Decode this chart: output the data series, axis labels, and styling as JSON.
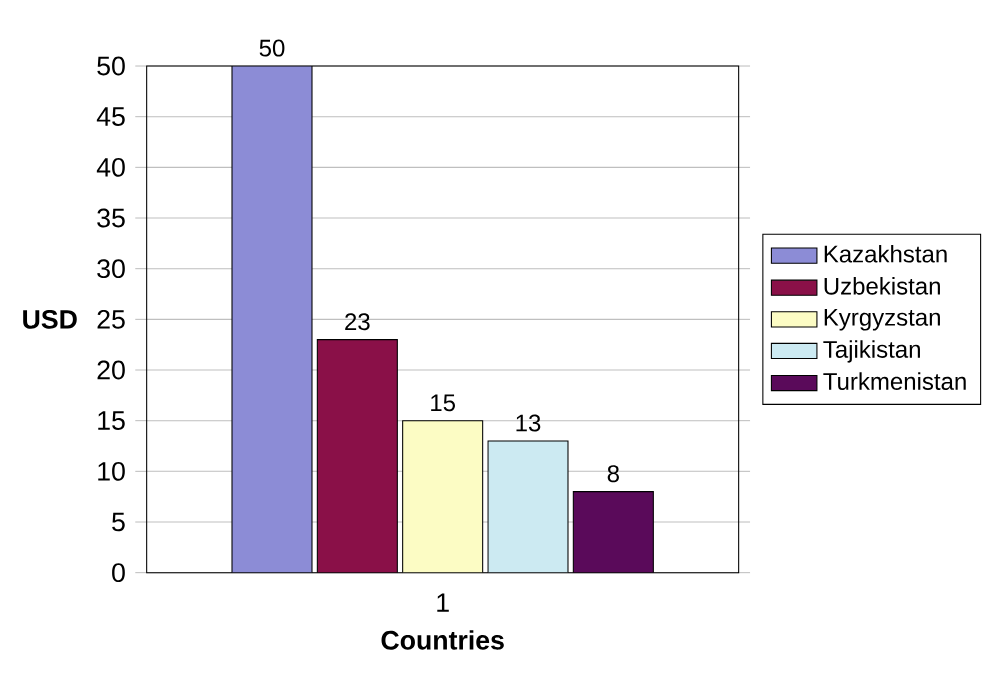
{
  "chart_data": {
    "type": "bar",
    "xlabel": "Countries",
    "ylabel": "USD",
    "categories": [
      "1"
    ],
    "series": [
      {
        "name": "Kazakhstan",
        "color": "#8c8cd6",
        "values": [
          50
        ]
      },
      {
        "name": "Uzbekistan",
        "color": "#8a1048",
        "values": [
          23
        ]
      },
      {
        "name": "Kyrgyzstan",
        "color": "#fcfcc4",
        "values": [
          15
        ]
      },
      {
        "name": "Tajikistan",
        "color": "#cceaf2",
        "values": [
          13
        ]
      },
      {
        "name": "Turkmenistan",
        "color": "#5a0a5a",
        "values": [
          8
        ]
      }
    ],
    "ylim": [
      0,
      50
    ],
    "yticks": [
      0,
      5,
      10,
      15,
      20,
      25,
      30,
      35,
      40,
      45,
      50
    ],
    "grid": "y",
    "legend": "right",
    "data_labels": true
  }
}
